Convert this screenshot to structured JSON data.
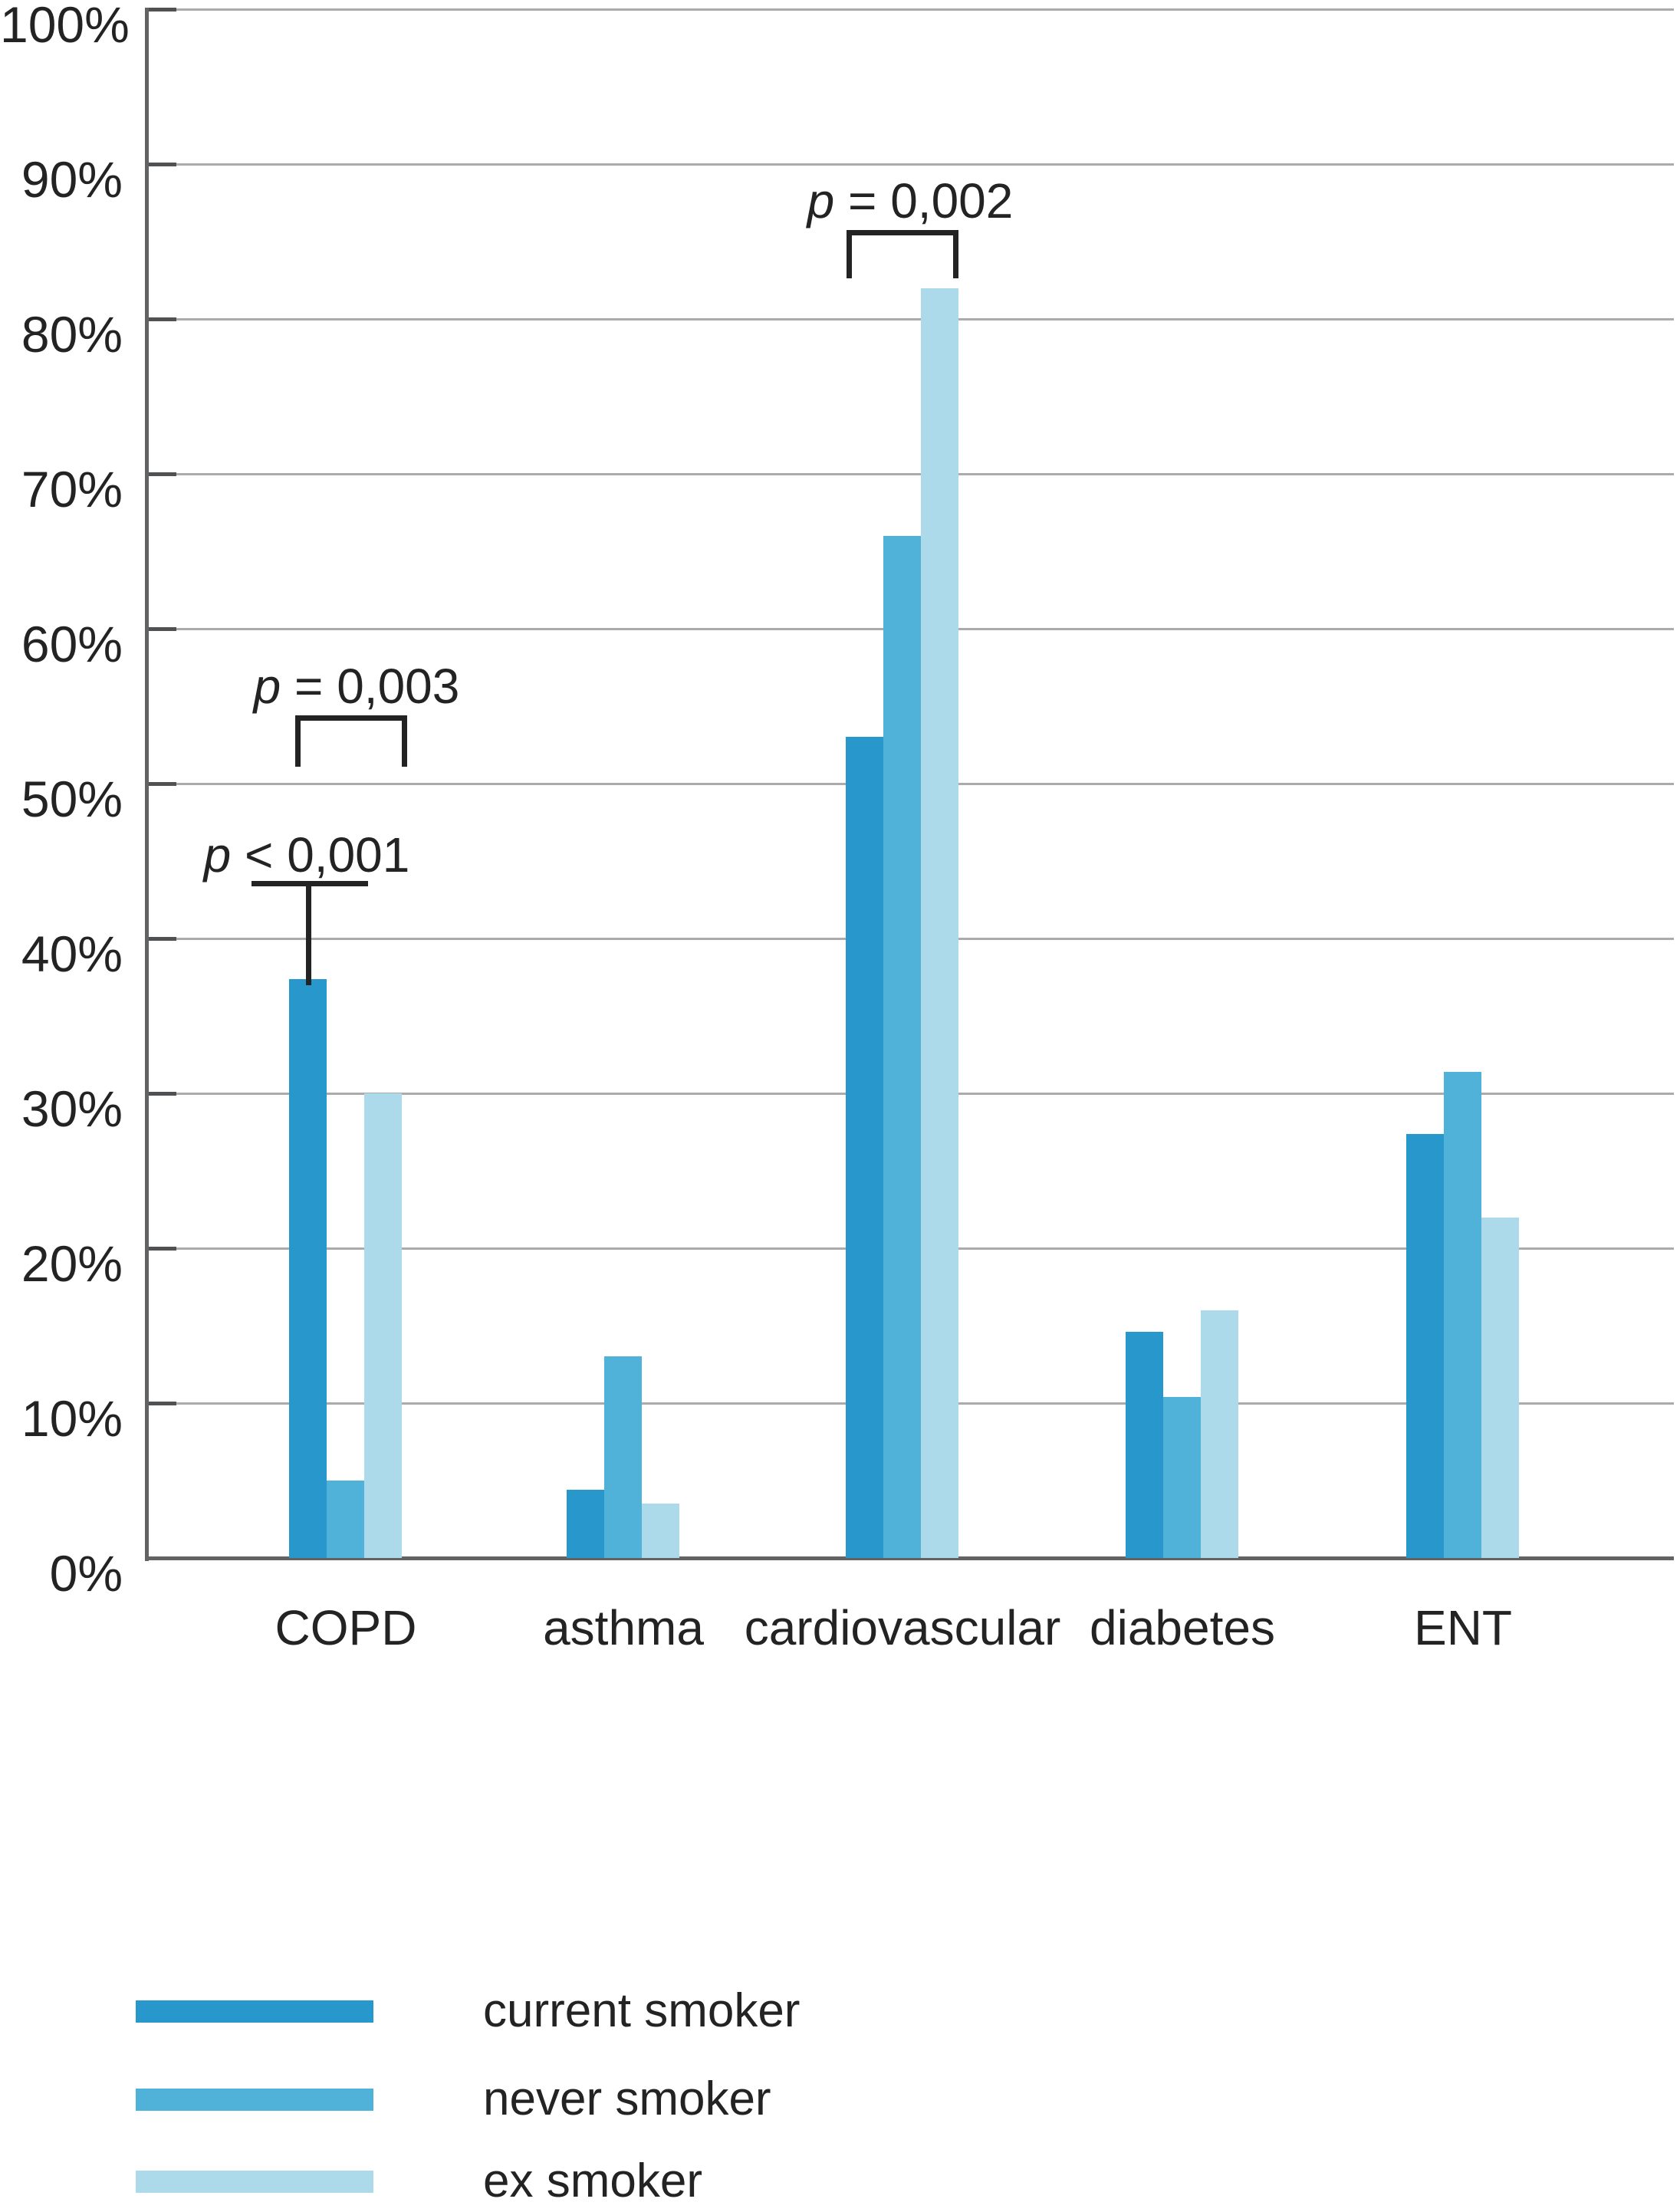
{
  "chart_data": {
    "type": "bar",
    "title": "",
    "categories": [
      "COPD",
      "asthma",
      "cardiovascular",
      "diabetes",
      "ENT"
    ],
    "series": [
      {
        "name": "current smoker",
        "color": "#2897cc",
        "values": [
          37.4,
          4.4,
          53,
          14.6,
          27.4
        ]
      },
      {
        "name": "never smoker",
        "color": "#50b2d9",
        "values": [
          5.0,
          13,
          66,
          10.4,
          31.4
        ]
      },
      {
        "name": "ex smoker",
        "color": "#addaeb",
        "values": [
          30,
          3.5,
          82,
          16,
          22
        ]
      }
    ],
    "y_axis": {
      "min": 0,
      "max": 100,
      "step": 10,
      "ticks": [
        "0%",
        "10%",
        "20%",
        "30%",
        "40%",
        "50%",
        "60%",
        "70%",
        "80%",
        "90%",
        "100%"
      ]
    },
    "xlabel": "",
    "ylabel": "",
    "grid": true,
    "legend_position": "bottom-left",
    "annotations": [
      {
        "v": "p",
        "rest": "= 0,003",
        "compares": "COPD group bracket"
      },
      {
        "v": "p",
        "rest": "< 0,001",
        "compares": "COPD current smoker pointer"
      },
      {
        "v": "p",
        "rest": "= 0,002",
        "compares": "cardiovascular group bracket"
      }
    ]
  }
}
